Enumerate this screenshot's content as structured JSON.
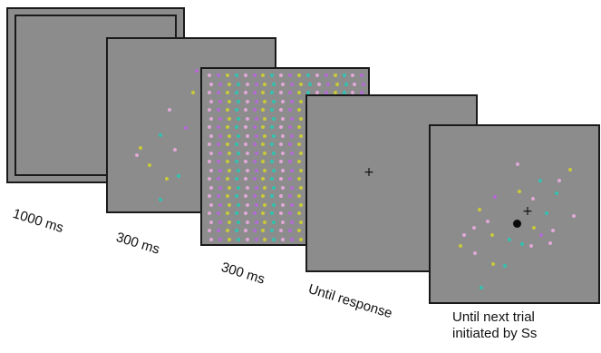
{
  "colors": {
    "screen": "#8c8c8c",
    "border": "#1a1a1a",
    "dot_palette": [
      "#e0a8d8",
      "#33c2b0",
      "#c9c93a",
      "#b36ad6"
    ]
  },
  "frames": [
    {
      "name": "fixation-frame",
      "content": "double-border"
    },
    {
      "name": "sample-array-frame",
      "content": "sparse-dots"
    },
    {
      "name": "mask-frame",
      "content": "dense-dot-grid"
    },
    {
      "name": "response-frame",
      "content": "fixation-cross",
      "symbol": "+"
    },
    {
      "name": "feedback-frame",
      "content": "sparse-dots-with-probe",
      "symbol": "+"
    }
  ],
  "labels": {
    "frame1": "1000 ms",
    "frame2": "300 ms",
    "frame3": "300 ms",
    "frame4": "Until response",
    "frame5_line1": "Until next trial",
    "frame5_line2": "initiated by Ss"
  }
}
